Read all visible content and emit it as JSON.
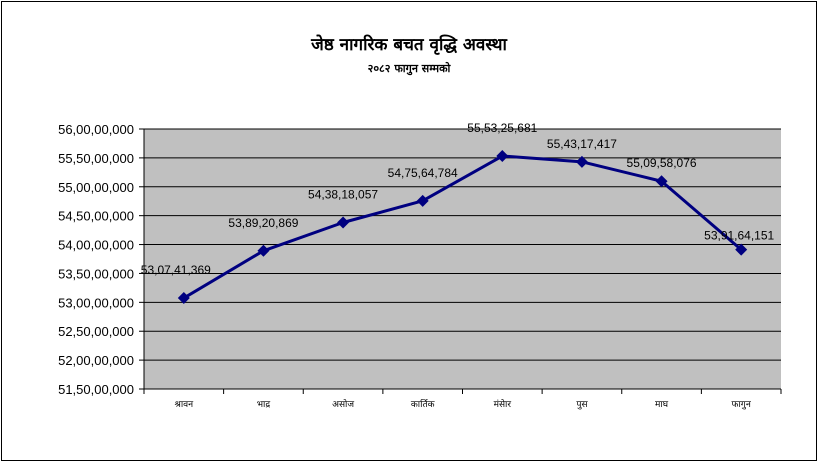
{
  "chart_data": {
    "type": "line",
    "title": "जेष्ठ नागरिक बचत वृद्धि अवस्था",
    "subtitle": "२०८२ फागुन सम्मको",
    "xlabel": "",
    "ylabel": "",
    "categories": [
      "श्रावन",
      "भाद्र",
      "असोज",
      "कार्तिक",
      "मंसेार",
      "पुस",
      "माघ",
      "फागुन"
    ],
    "series": [
      {
        "values": [
          5307411369,
          5389200869,
          5438180057,
          5475644784,
          5553256681,
          5543170417,
          5509580076,
          5391164151
        ],
        "labels": [
          "53,07,41,369",
          "53,89,20,869",
          "54,38,18,057",
          "54,75,64,784",
          "55,53,25,681",
          "55,43,17,417",
          "55,09,58,076",
          "53,91,64,151"
        ]
      }
    ],
    "ylim": [
      5150000000,
      5600000000
    ],
    "yticks": [
      5600000000,
      5550000000,
      5500000000,
      5450000000,
      5400000000,
      5350000000,
      5300000000,
      5250000000,
      5200000000,
      5150000000
    ],
    "ytick_labels": [
      "56,00,00,000",
      "55,50,00,000",
      "55,00,00,000",
      "54,50,00,000",
      "54,00,00,000",
      "53,50,00,000",
      "53,00,00,000",
      "52,50,00,000",
      "52,00,00,000",
      "51,50,00,000"
    ],
    "grid": true,
    "legend": "none",
    "colors": {
      "plot_bg": "#c0c0c0",
      "line": "#000080",
      "grid": "#000000"
    }
  }
}
